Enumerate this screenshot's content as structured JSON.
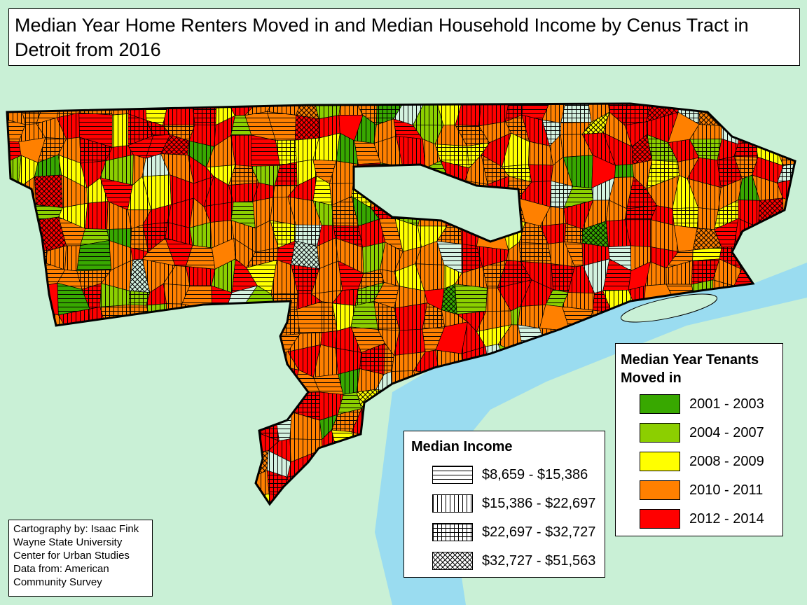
{
  "title": "Median Year Home Renters Moved in and Median Household Income by Cenus Tract in Detroit from 2016",
  "tenure_legend": {
    "title": "Median Year Tenants Moved in",
    "items": [
      {
        "label": "2001 - 2003",
        "color": "#38a800"
      },
      {
        "label": "2004 - 2007",
        "color": "#8ccf00"
      },
      {
        "label": "2008 - 2009",
        "color": "#ffff00"
      },
      {
        "label": "2010 - 2011",
        "color": "#ff8000"
      },
      {
        "label": "2012 - 2014",
        "color": "#ff0000"
      }
    ]
  },
  "income_legend": {
    "title": "Median Income",
    "items": [
      "$8,659 - $15,386",
      "$15,386 - $22,697",
      "$22,697 - $32,727",
      "$32,727 - $51,563"
    ]
  },
  "credits": [
    "Cartography by: Isaac Fink",
    "Wayne State University",
    "Center for Urban Studies",
    "Data from: American",
    "Community Survey"
  ]
}
